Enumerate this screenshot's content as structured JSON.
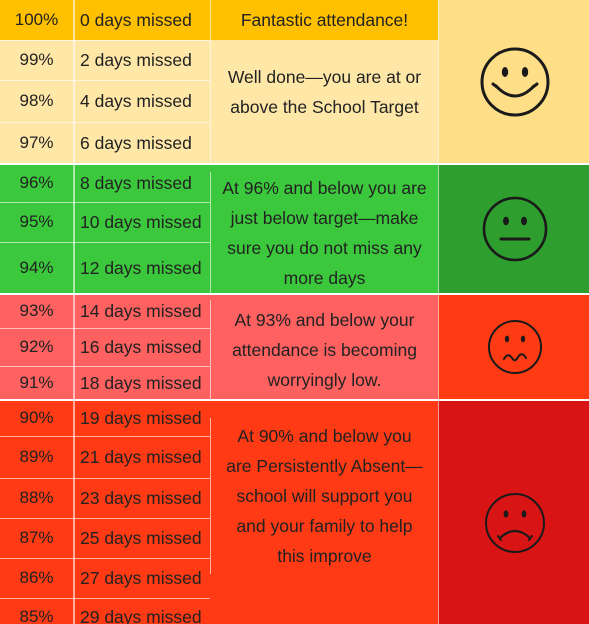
{
  "colors": {
    "band1_left": "#FFE7A8",
    "band1_header": "#FFC000",
    "band1_face_bg": "#FFDE88",
    "band2": "#3CC83C",
    "band2_face_bg": "#2E9E2E",
    "band3": "#FF6060",
    "band3_face_bg": "#FF3B14",
    "band4": "#FF3A14",
    "band4_face_bg": "#D81414",
    "text": "#222222",
    "face_stroke": "#1a1a1a"
  },
  "rows": [
    {
      "pct": "100%",
      "days": "0 days missed"
    },
    {
      "pct": "99%",
      "days": "2 days missed"
    },
    {
      "pct": "98%",
      "days": "4 days missed"
    },
    {
      "pct": "97%",
      "days": "6 days missed"
    },
    {
      "pct": "96%",
      "days": "8 days missed"
    },
    {
      "pct": "95%",
      "days": "10 days missed"
    },
    {
      "pct": "94%",
      "days": "12 days missed"
    },
    {
      "pct": "93%",
      "days": "14 days missed"
    },
    {
      "pct": "92%",
      "days": "16 days missed"
    },
    {
      "pct": "91%",
      "days": "18 days missed"
    },
    {
      "pct": "90%",
      "days": "19 days missed"
    },
    {
      "pct": "89%",
      "days": "21 days missed"
    },
    {
      "pct": "88%",
      "days": "23 days missed"
    },
    {
      "pct": "87%",
      "days": "25 days missed"
    },
    {
      "pct": "86%",
      "days": "27 days missed"
    },
    {
      "pct": "85%",
      "days": "29 days missed"
    }
  ],
  "messages": {
    "fantastic": "Fantastic attendance!",
    "well_done": "Well done—you are at or above the School Target",
    "below_target": "At 96% and below you are just below target—make sure you do not miss any more days",
    "worrying": "At 93% and below your attendance is becoming worryingly low.",
    "persistent": "At 90% and below you are Persistently Absent— school will support you and your family to help this improve"
  },
  "faces": {
    "band1": "smiling-face-icon",
    "band2": "neutral-face-icon",
    "band3": "worried-face-icon",
    "band4": "sad-face-icon"
  }
}
